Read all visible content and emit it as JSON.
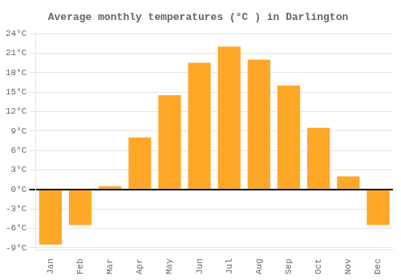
{
  "chart_data": {
    "type": "bar",
    "title": "Average monthly temperatures (°C ) in Darlington",
    "categories": [
      "Jan",
      "Feb",
      "Mar",
      "Apr",
      "May",
      "Jun",
      "Jul",
      "Aug",
      "Sep",
      "Oct",
      "Nov",
      "Dec"
    ],
    "values": [
      -8.5,
      -5.5,
      0.5,
      8.0,
      14.5,
      19.5,
      22.0,
      20.0,
      16.0,
      9.5,
      2.0,
      -5.5
    ],
    "color": "#FFA726",
    "ylim": [
      -9.3,
      24.3
    ],
    "yticks": [
      {
        "value": -9,
        "label": "-9°C"
      },
      {
        "value": -6,
        "label": "-6°C"
      },
      {
        "value": -3,
        "label": "-3°C"
      },
      {
        "value": 0,
        "label": "0°C"
      },
      {
        "value": 3,
        "label": "3°C"
      },
      {
        "value": 6,
        "label": "6°C"
      },
      {
        "value": 9,
        "label": "9°C"
      },
      {
        "value": 12,
        "label": "12°C"
      },
      {
        "value": 15,
        "label": "15°C"
      },
      {
        "value": 18,
        "label": "18°C"
      },
      {
        "value": 21,
        "label": "21°C"
      },
      {
        "value": 24,
        "label": "24°C"
      }
    ],
    "grid": true
  }
}
